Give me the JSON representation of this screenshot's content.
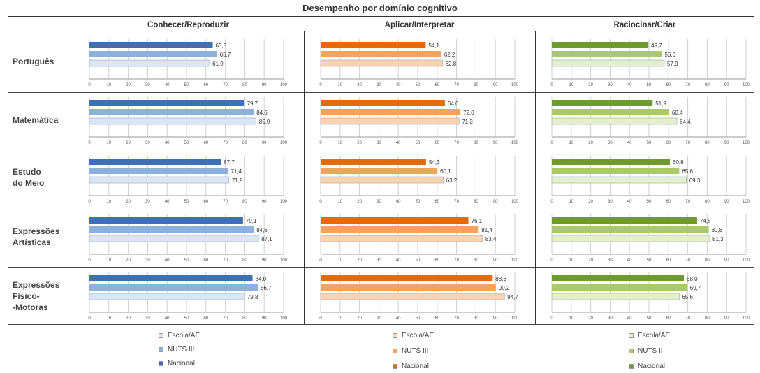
{
  "title": "Desempenho por domínio cognitivo",
  "columns": [
    "Conhecer/Reproduzir",
    "Aplicar/Interpretar",
    "Raciocinar/Criar"
  ],
  "rows": [
    "Português",
    "Matemática",
    "Estudo\ndo Meio",
    "Expressões\nArtísticas",
    "Expressões\nFísico-\n-Motoras"
  ],
  "colors": {
    "blue": [
      "#3f6fb5",
      "#8eb0dc",
      "#dbe6f4"
    ],
    "orange": [
      "#e26b10",
      "#f3a35c",
      "#fbd3b3"
    ],
    "green": [
      "#6f9a2e",
      "#a9c96a",
      "#e3efcd"
    ]
  },
  "legend": [
    [
      "Escola/AE",
      "NUTS III",
      "Nacional"
    ],
    [
      "Escola/AE",
      "NUTS III",
      "Nacional"
    ],
    [
      "Escola/AE",
      "NUTS II",
      "Nacional"
    ]
  ],
  "chart_data": {
    "type": "bar",
    "orientation": "horizontal",
    "xlim": [
      0,
      100
    ],
    "ticks": [
      "0",
      "10",
      "20",
      "30",
      "40",
      "50",
      "60",
      "70",
      "80",
      "90",
      "100"
    ],
    "series_order_top_to_bottom": [
      "Nacional",
      "NUTS III",
      "Escola/AE"
    ],
    "panels": [
      {
        "row": "Português",
        "column": "Conhecer/Reproduzir",
        "values": [
          63.5,
          65.7,
          61.9
        ],
        "labels": [
          "63,5",
          "65,7",
          "61,9"
        ]
      },
      {
        "row": "Português",
        "column": "Aplicar/Interpretar",
        "values": [
          54.1,
          62.2,
          62.8
        ],
        "labels": [
          "54,1",
          "62,2",
          "62,8"
        ]
      },
      {
        "row": "Português",
        "column": "Raciocinar/Criar",
        "values": [
          49.7,
          56.6,
          57.9
        ],
        "labels": [
          "49,7",
          "56,6",
          "57,9"
        ]
      },
      {
        "row": "Matemática",
        "column": "Conhecer/Reproduzir",
        "values": [
          79.7,
          84.6,
          85.9
        ],
        "labels": [
          "79,7",
          "84,6",
          "85,9"
        ]
      },
      {
        "row": "Matemática",
        "column": "Aplicar/Interpretar",
        "values": [
          64.0,
          72.0,
          71.3
        ],
        "labels": [
          "64,0",
          "72,0",
          "71,3"
        ]
      },
      {
        "row": "Matemática",
        "column": "Raciocinar/Criar",
        "values": [
          51.9,
          60.4,
          64.4
        ],
        "labels": [
          "51,9",
          "60,4",
          "64,4"
        ]
      },
      {
        "row": "Estudo do Meio",
        "column": "Conhecer/Reproduzir",
        "values": [
          67.7,
          71.4,
          71.9
        ],
        "labels": [
          "67,7",
          "71,4",
          "71,9"
        ]
      },
      {
        "row": "Estudo do Meio",
        "column": "Aplicar/Interpretar",
        "values": [
          54.3,
          60.1,
          63.2
        ],
        "labels": [
          "54,3",
          "60,1",
          "63,2"
        ]
      },
      {
        "row": "Estudo do Meio",
        "column": "Raciocinar/Criar",
        "values": [
          60.8,
          65.6,
          69.3
        ],
        "labels": [
          "60,8",
          "65,6",
          "69,3"
        ]
      },
      {
        "row": "Expressões Artísticas",
        "column": "Conhecer/Reproduzir",
        "values": [
          79.1,
          84.6,
          87.1
        ],
        "labels": [
          "79,1",
          "84,6",
          "87,1"
        ]
      },
      {
        "row": "Expressões Artísticas",
        "column": "Aplicar/Interpretar",
        "values": [
          76.1,
          81.4,
          83.4
        ],
        "labels": [
          "76,1",
          "81,4",
          "83,4"
        ]
      },
      {
        "row": "Expressões Artísticas",
        "column": "Raciocinar/Criar",
        "values": [
          74.8,
          80.8,
          81.3
        ],
        "labels": [
          "74,8",
          "80,8",
          "81,3"
        ]
      },
      {
        "row": "Expressões Físico-Motoras",
        "column": "Conhecer/Reproduzir",
        "values": [
          84.0,
          86.7,
          79.8
        ],
        "labels": [
          "84,0",
          "86,7",
          "79,8"
        ]
      },
      {
        "row": "Expressões Físico-Motoras",
        "column": "Aplicar/Interpretar",
        "values": [
          88.6,
          90.2,
          94.7
        ],
        "labels": [
          "88,6",
          "90,2",
          "94,7"
        ]
      },
      {
        "row": "Expressões Físico-Motoras",
        "column": "Raciocinar/Criar",
        "values": [
          68.0,
          69.7,
          65.6
        ],
        "labels": [
          "68,0",
          "69,7",
          "65,6"
        ]
      }
    ]
  }
}
